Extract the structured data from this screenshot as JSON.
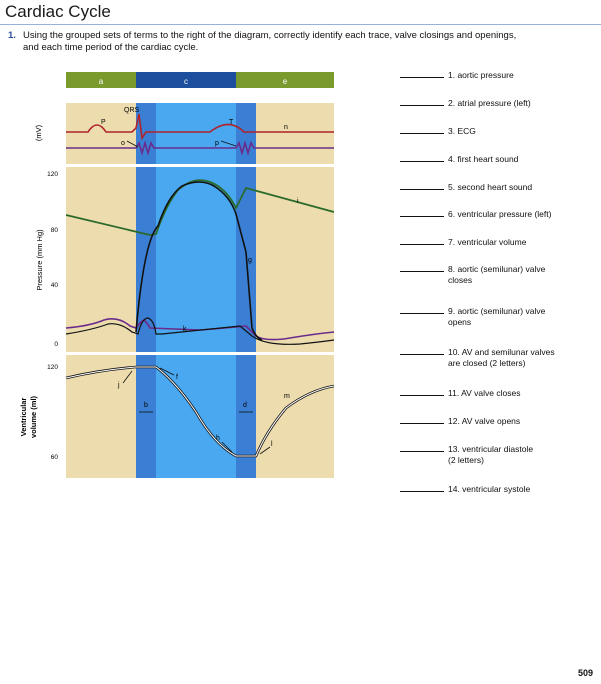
{
  "header": {
    "title": "Cardiac Cycle",
    "instruction_number": "1.",
    "instruction_line1": "Using the grouped sets of terms to the right of the diagram, correctly identify each trace, valve closings and openings,",
    "instruction_line2": "and each time period of the cardiac cycle."
  },
  "diagram": {
    "period_labels": [
      "a",
      "c",
      "e"
    ],
    "ecg": {
      "axis_label": "(mV)",
      "wave_labels": {
        "p": "P",
        "qrs": "QRS",
        "t": "T"
      },
      "trace_labels": {
        "n": "n",
        "o": "o",
        "p_trace": "p"
      }
    },
    "pressure": {
      "axis_label": "Pressure (mm Hg)",
      "ticks": [
        "120",
        "80",
        "40",
        "0"
      ],
      "trace_labels": {
        "g": "g",
        "i": "i",
        "k": "k"
      }
    },
    "volume": {
      "axis_label_line1": "Ventricular",
      "axis_label_line2": "volume (ml)",
      "ticks": [
        "120",
        "60"
      ],
      "trace_labels": {
        "b": "b",
        "d": "d",
        "f": "f",
        "h": "h",
        "j": "j",
        "l": "l",
        "m": "m"
      }
    },
    "colors": {
      "background_panel": "#eddcae",
      "period_bar_green": "#7a9a2e",
      "period_bar_blue": "#1c4f9e",
      "light_blue_band": "#4aa8f0",
      "dark_blue_band": "#3a7fd4",
      "ecg_red": "#b0232a",
      "atrial_purple": "#6a2c8a",
      "aortic_green": "#2a6a2a",
      "ventricular_black": "#111111"
    }
  },
  "terms": [
    "1. aortic pressure",
    "2. atrial pressure (left)",
    "3. ECG",
    "4. first heart sound",
    "5. second heart sound",
    "6. ventricular pressure (left)",
    "7. ventricular volume",
    "8. aortic (semilunar) valve",
    "closes",
    "9. aortic (semilunar) valve",
    "opens",
    "10. AV and semilunar valves",
    "are closed (2 letters)",
    "11. AV valve closes",
    "12. AV valve opens",
    "13. ventricular diastole",
    "(2 letters)",
    "14. ventricular systole"
  ],
  "footer": {
    "page_number": "509"
  }
}
